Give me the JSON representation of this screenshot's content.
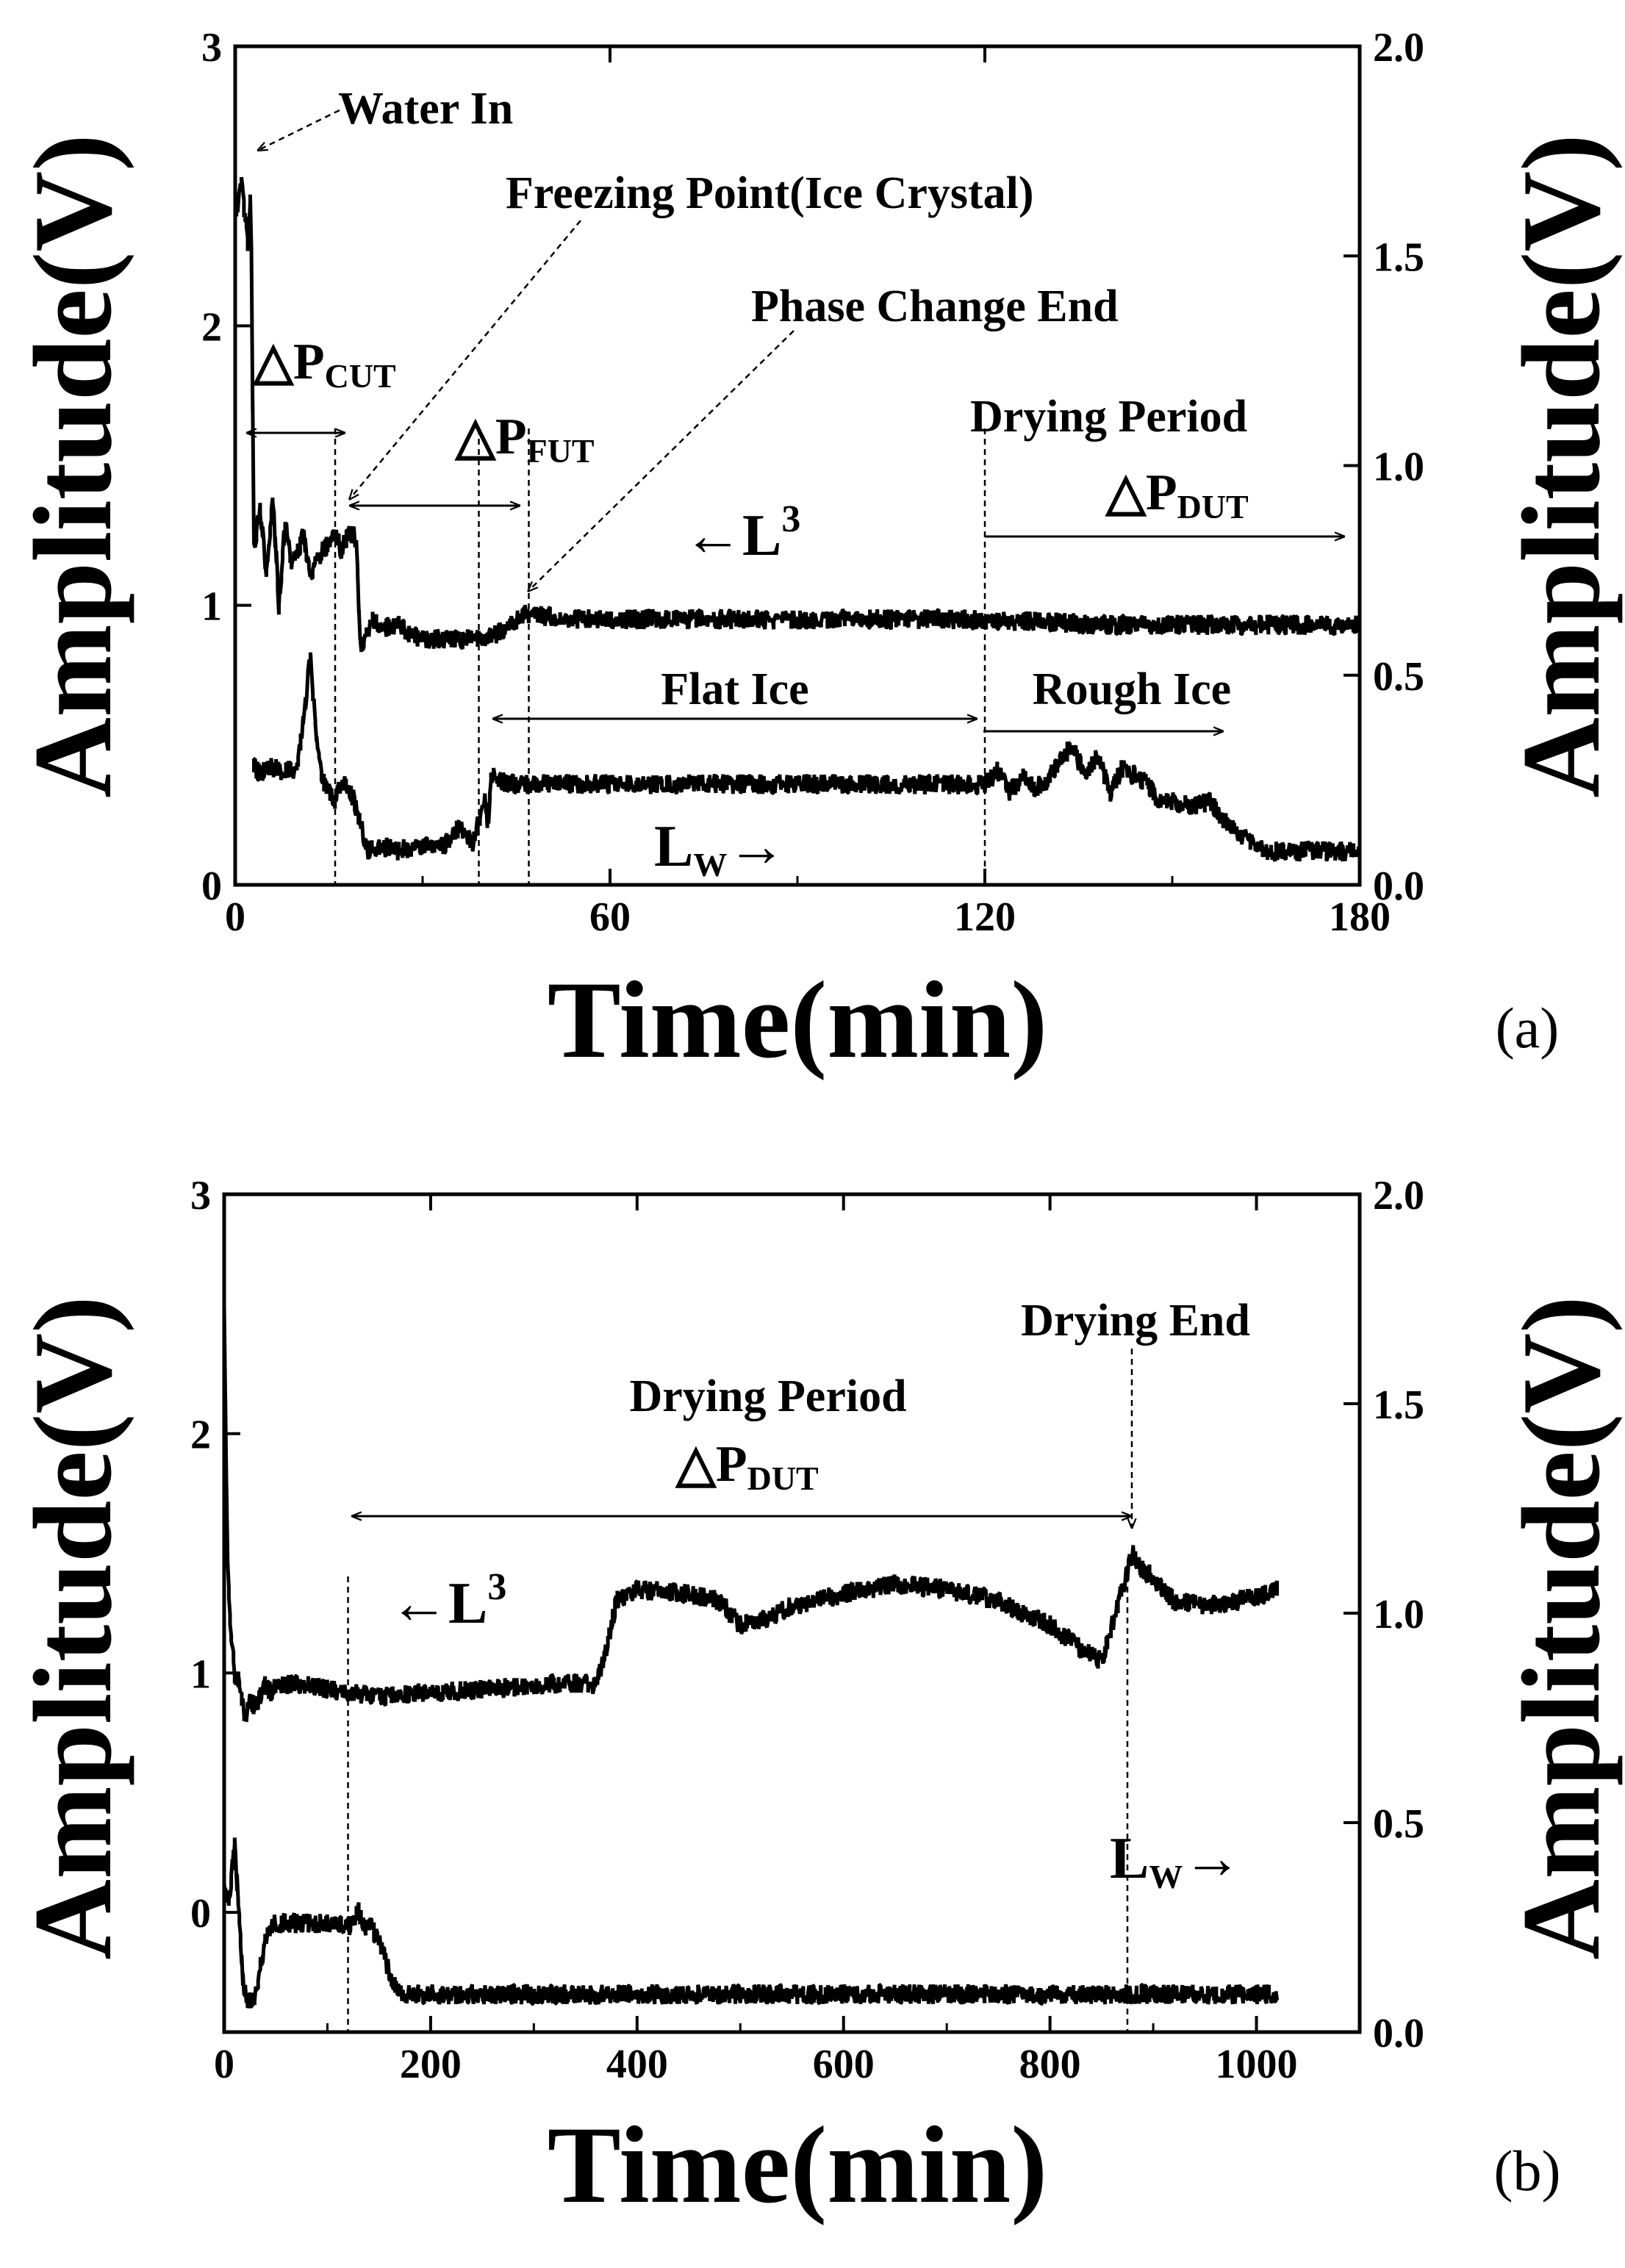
{
  "chart_data": [
    {
      "type": "line",
      "panel_label": "(a)",
      "xlabel": "Time(min)",
      "ylabel_left": "Amplitude(V)",
      "ylabel_right": "Amplitude(V)",
      "xlim": [
        0,
        180
      ],
      "ylim_left": [
        0,
        3
      ],
      "ylim_right": [
        0,
        2.0
      ],
      "xticks": [
        "0",
        "60",
        "120",
        "180"
      ],
      "yticks_left": [
        "0",
        "1",
        "2",
        "3"
      ],
      "yticks_right": [
        "0.0",
        "0.5",
        "1.0",
        "1.5",
        "2.0"
      ],
      "series": [
        {
          "name": "L³",
          "axis": "left",
          "x": [
            0,
            1,
            2,
            2.5,
            3,
            4,
            5,
            6,
            7,
            8,
            9,
            10,
            11,
            12,
            13,
            14,
            15,
            16,
            17,
            18,
            19,
            19.5,
            20,
            21,
            22,
            24,
            26,
            28,
            30,
            32,
            34,
            36,
            38,
            40,
            42,
            44,
            45,
            46,
            48,
            50,
            55,
            60,
            70,
            80,
            90,
            100,
            110,
            120,
            130,
            140,
            150,
            160,
            170,
            180
          ],
          "values": [
            2.4,
            2.5,
            2.3,
            2.5,
            1.2,
            1.35,
            1.1,
            1.4,
            1.0,
            1.3,
            1.15,
            1.2,
            1.25,
            1.1,
            1.15,
            1.2,
            1.22,
            1.25,
            1.2,
            1.25,
            1.25,
            1.2,
            0.85,
            0.9,
            0.95,
            0.92,
            0.93,
            0.9,
            0.88,
            0.88,
            0.88,
            0.88,
            0.88,
            0.88,
            0.9,
            0.93,
            0.95,
            0.97,
            0.97,
            0.96,
            0.95,
            0.95,
            0.95,
            0.95,
            0.95,
            0.95,
            0.95,
            0.95,
            0.94,
            0.93,
            0.93,
            0.93,
            0.93,
            0.93
          ]
        },
        {
          "name": "Lw",
          "axis": "right",
          "x": [
            3,
            4,
            6,
            8,
            10,
            11,
            12,
            13,
            14,
            15,
            16,
            17,
            18,
            19,
            20,
            21,
            22,
            24,
            26,
            28,
            30,
            32,
            34,
            36,
            38,
            39,
            40,
            40.5,
            41,
            42,
            44,
            50,
            60,
            70,
            80,
            90,
            100,
            110,
            120,
            122,
            124,
            126,
            128,
            130,
            132,
            134,
            136,
            138,
            140,
            142,
            144,
            146,
            148,
            150,
            152,
            154,
            156,
            158,
            160,
            162,
            165,
            170,
            175,
            180
          ],
          "values": [
            0.28,
            0.27,
            0.28,
            0.27,
            0.28,
            0.4,
            0.55,
            0.35,
            0.25,
            0.22,
            0.2,
            0.25,
            0.24,
            0.2,
            0.15,
            0.08,
            0.09,
            0.09,
            0.08,
            0.09,
            0.09,
            0.09,
            0.1,
            0.14,
            0.1,
            0.15,
            0.2,
            0.14,
            0.27,
            0.25,
            0.24,
            0.24,
            0.24,
            0.24,
            0.24,
            0.24,
            0.24,
            0.24,
            0.24,
            0.27,
            0.22,
            0.26,
            0.23,
            0.25,
            0.3,
            0.33,
            0.26,
            0.31,
            0.22,
            0.28,
            0.26,
            0.24,
            0.2,
            0.2,
            0.19,
            0.19,
            0.2,
            0.16,
            0.13,
            0.11,
            0.08,
            0.08,
            0.08,
            0.08
          ]
        }
      ],
      "annotations": {
        "water_in": "Water In",
        "freezing_point": "Freezing Point(Ice Crystal)",
        "phase_change_end": "Phase Change End",
        "drying_period": "Drying Period",
        "p_cut": "△P",
        "p_cut_sub": "CUT",
        "p_fut": "△P",
        "p_fut_sub": "FUT",
        "p_dut": "△P",
        "p_dut_sub": "DUT",
        "l3_arrow": "←L",
        "l3_sup": "3",
        "flat_ice": "Flat Ice",
        "rough_ice": "Rough Ice",
        "lw": "L",
        "lw_sub": "W",
        "lw_arrow": "→"
      },
      "marker_x": [
        16,
        47,
        39,
        120
      ]
    },
    {
      "type": "line",
      "panel_label": "(b)",
      "xlabel": "Time(min)",
      "ylabel_left": "Amplitude(V)",
      "ylabel_right": "Amplitude(V)",
      "xlim": [
        0,
        1100
      ],
      "ylim_left": [
        -0.5,
        3
      ],
      "ylim_right": [
        0,
        2.0
      ],
      "xticks": [
        "0",
        "200",
        "400",
        "600",
        "800",
        "1000"
      ],
      "yticks_left": [
        "0",
        "1",
        "2",
        "3"
      ],
      "yticks_right": [
        "0.0",
        "0.5",
        "1.0",
        "1.5",
        "2.0"
      ],
      "series": [
        {
          "name": "L³",
          "axis": "left",
          "x": [
            0,
            3,
            6,
            10,
            15,
            20,
            25,
            30,
            35,
            40,
            45,
            50,
            60,
            80,
            100,
            120,
            150,
            200,
            250,
            300,
            340,
            360,
            370,
            380,
            390,
            400,
            450,
            480,
            500,
            520,
            550,
            600,
            650,
            700,
            750,
            800,
            830,
            850,
            860,
            870,
            880,
            885,
            900,
            920,
            950,
            980,
            1000,
            1020
          ],
          "values": [
            2.5,
            1.5,
            1.2,
            1.0,
            0.95,
            0.8,
            0.9,
            0.85,
            0.9,
            0.95,
            0.92,
            0.95,
            0.95,
            0.95,
            0.93,
            0.92,
            0.9,
            0.92,
            0.93,
            0.95,
            0.96,
            0.95,
            1.1,
            1.3,
            1.32,
            1.35,
            1.33,
            1.3,
            1.2,
            1.22,
            1.28,
            1.33,
            1.37,
            1.35,
            1.3,
            1.2,
            1.1,
            1.05,
            1.2,
            1.35,
            1.5,
            1.45,
            1.4,
            1.3,
            1.28,
            1.3,
            1.32,
            1.35
          ]
        },
        {
          "name": "Lw",
          "axis": "right",
          "x": [
            0,
            5,
            10,
            14,
            18,
            22,
            26,
            30,
            40,
            45,
            50,
            60,
            80,
            100,
            120,
            130,
            135,
            140,
            150,
            160,
            170,
            180,
            200,
            250,
            300,
            400,
            500,
            600,
            700,
            800,
            900,
            1000,
            1020
          ],
          "values": [
            0.35,
            0.3,
            0.45,
            0.3,
            0.12,
            0.08,
            0.07,
            0.09,
            0.22,
            0.25,
            0.26,
            0.26,
            0.26,
            0.26,
            0.25,
            0.29,
            0.25,
            0.26,
            0.22,
            0.14,
            0.09,
            0.09,
            0.09,
            0.09,
            0.09,
            0.09,
            0.09,
            0.09,
            0.09,
            0.09,
            0.09,
            0.09,
            0.09
          ]
        }
      ],
      "annotations": {
        "drying_end": "Drying End",
        "drying_period": "Drying Period",
        "p_dut": "△P",
        "p_dut_sub": "DUT",
        "l3_arrow": "←L",
        "l3_sup": "3",
        "lw": "L",
        "lw_sub": "W",
        "lw_arrow": "→"
      },
      "marker_x": [
        120,
        875
      ]
    }
  ]
}
